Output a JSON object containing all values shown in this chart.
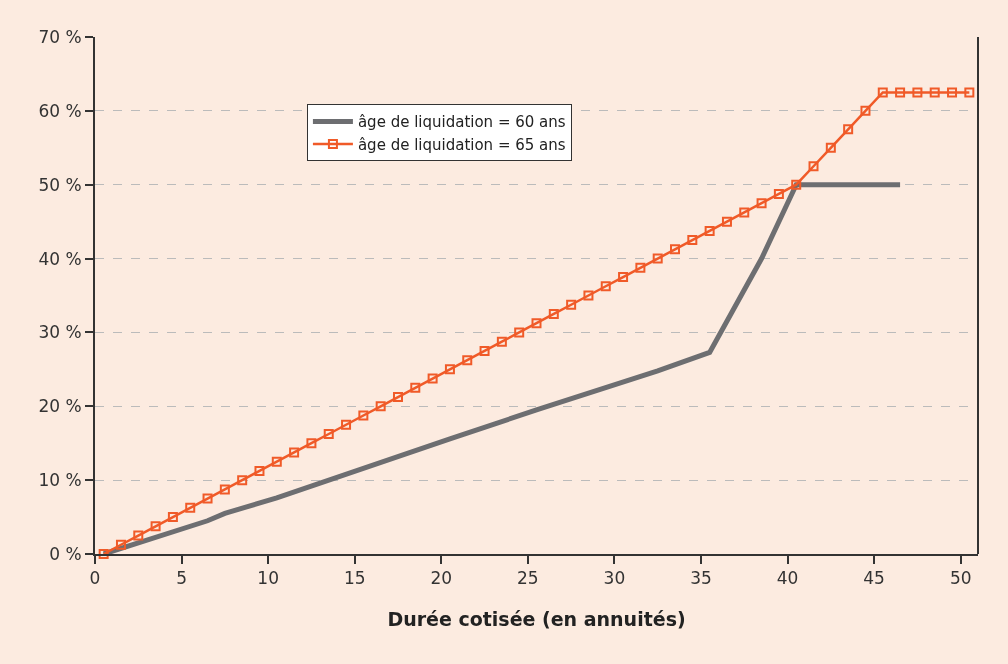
{
  "chart_data": {
    "type": "line",
    "xlabel": "Durée cotisée (en annuités)",
    "xlim": [
      0,
      51
    ],
    "xticks": [
      0,
      5,
      10,
      15,
      20,
      25,
      30,
      35,
      40,
      45,
      50
    ],
    "ylim": [
      0,
      70
    ],
    "yticks": [
      {
        "value": 0,
        "label": "0 %"
      },
      {
        "value": 10,
        "label": "10 %"
      },
      {
        "value": 20,
        "label": "20 %"
      },
      {
        "value": 30,
        "label": "30 %"
      },
      {
        "value": 40,
        "label": "40 %"
      },
      {
        "value": 50,
        "label": "50 %"
      },
      {
        "value": 60,
        "label": "60 %"
      },
      {
        "value": 70,
        "label": "70 %"
      }
    ],
    "grid": "y",
    "legend": "top left",
    "series": [
      {
        "name": "âge de liquidation = 60 ans",
        "color": "#6d6e71",
        "marker": "none",
        "x": [
          0.5,
          6.5,
          7.5,
          10.5,
          20.5,
          25.5,
          32.5,
          35.5,
          38.5,
          40.5,
          46.5
        ],
        "values": [
          0,
          4.5,
          5.5,
          7.6,
          15.6,
          19.5,
          24.8,
          27.3,
          40,
          50,
          50
        ]
      },
      {
        "name": "âge de liquidation = 65 ans",
        "color": "#f05a28",
        "marker": "square",
        "x": [
          0.5,
          1.5,
          2.5,
          3.5,
          4.5,
          5.5,
          6.5,
          7.5,
          8.5,
          9.5,
          10.5,
          11.5,
          12.5,
          13.5,
          14.5,
          15.5,
          16.5,
          17.5,
          18.5,
          19.5,
          20.5,
          21.5,
          22.5,
          23.5,
          24.5,
          25.5,
          26.5,
          27.5,
          28.5,
          29.5,
          30.5,
          31.5,
          32.5,
          33.5,
          34.5,
          35.5,
          36.5,
          37.5,
          38.5,
          39.5,
          40.5,
          41.5,
          42.5,
          43.5,
          44.5,
          45.5,
          46.5,
          47.5,
          48.5,
          49.5,
          50.5
        ],
        "values": [
          0,
          1.25,
          2.5,
          3.75,
          5,
          6.25,
          7.5,
          8.75,
          10,
          11.25,
          12.5,
          13.75,
          15,
          16.25,
          17.5,
          18.75,
          20,
          21.25,
          22.5,
          23.75,
          25,
          26.25,
          27.5,
          28.75,
          30,
          31.25,
          32.5,
          33.75,
          35,
          36.25,
          37.5,
          38.75,
          40,
          41.25,
          42.5,
          43.75,
          45,
          46.25,
          47.5,
          48.75,
          50,
          52.5,
          55,
          57.5,
          60,
          62.5,
          62.5,
          62.5,
          62.5,
          62.5,
          62.5
        ]
      }
    ]
  }
}
